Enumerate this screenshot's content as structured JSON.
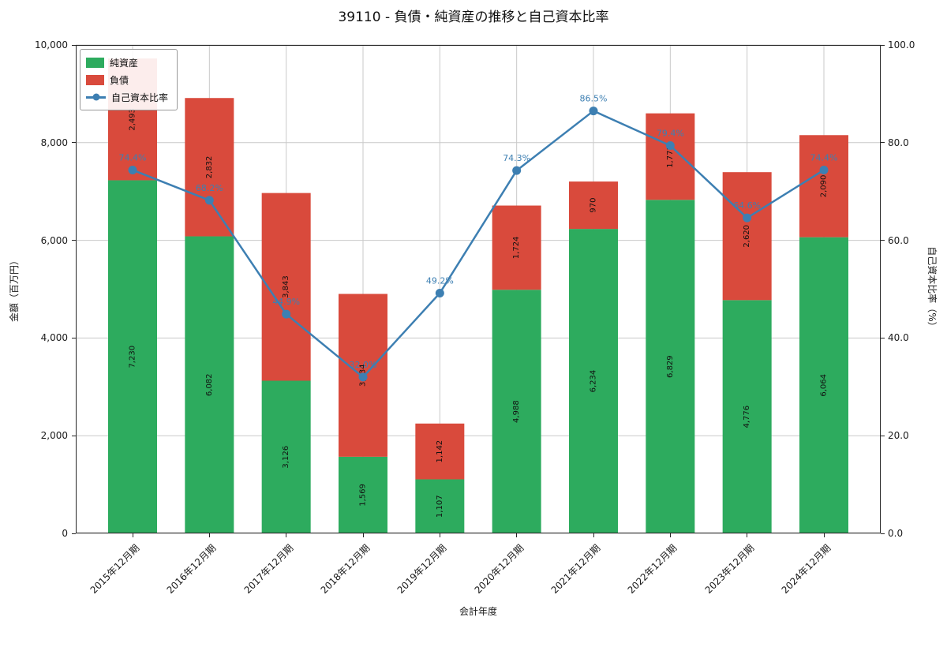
{
  "chart_data": {
    "type": "bar",
    "stacked": true,
    "title": "39110 - 負債・純資産の推移と自己資本比率",
    "xlabel": "会計年度",
    "ylabel_left": "金額（百万円）",
    "ylabel_right": "自己資本比率（%）",
    "categories": [
      "2015年12月期",
      "2016年12月期",
      "2017年12月期",
      "2018年12月期",
      "2019年12月期",
      "2020年12月期",
      "2021年12月期",
      "2022年12月期",
      "2023年12月期",
      "2024年12月期"
    ],
    "series": [
      {
        "name": "純資産",
        "type": "bar",
        "color": "#2dab5e",
        "values": [
          7230,
          6082,
          3126,
          1569,
          1107,
          4988,
          6234,
          6829,
          4776,
          6064
        ],
        "labels": [
          "7,230",
          "6,082",
          "3,126",
          "1,569",
          "1,107",
          "4,988",
          "6,234",
          "6,829",
          "4,776",
          "6,064"
        ]
      },
      {
        "name": "負債",
        "type": "bar",
        "color": "#d94a3c",
        "values": [
          2493,
          2832,
          3843,
          3334,
          1142,
          1724,
          970,
          1771,
          2620,
          2090
        ],
        "labels": [
          "2,493",
          "2,832",
          "3,843",
          "3,334",
          "1,142",
          "1,724",
          "970",
          "1,771",
          "2,620",
          "2,090"
        ]
      },
      {
        "name": "自己資本比率",
        "type": "line",
        "color": "#3d7fb2",
        "values": [
          74.4,
          68.2,
          44.9,
          32.0,
          49.2,
          74.3,
          86.5,
          79.4,
          64.6,
          74.4
        ],
        "labels": [
          "74.4%",
          "68.2%",
          "44.9%",
          "32.0%",
          "49.2%",
          "74.3%",
          "86.5%",
          "79.4%",
          "64.6%",
          "74.4%"
        ]
      }
    ],
    "axes": {
      "left": {
        "ticks": [
          0,
          2000,
          4000,
          6000,
          8000,
          10000
        ],
        "tick_labels": [
          "0",
          "2,000",
          "4,000",
          "6,000",
          "8,000",
          "10,000"
        ],
        "max": 10000
      },
      "right": {
        "ticks": [
          0,
          20,
          40,
          60,
          80,
          100
        ],
        "tick_labels": [
          "0.0",
          "20.0",
          "40.0",
          "60.0",
          "80.0",
          "100.0"
        ],
        "max": 100
      }
    },
    "grid": true,
    "legend": {
      "position": "upper left",
      "entries": [
        "純資産",
        "負債",
        "自己資本比率"
      ]
    }
  }
}
